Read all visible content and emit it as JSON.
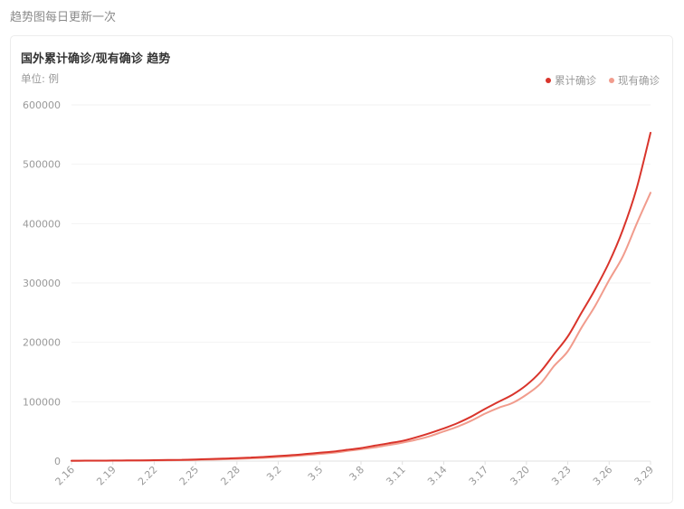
{
  "header": {
    "text": "趋势图每日更新一次"
  },
  "card": {
    "title": "国外累计确诊/现有确诊 趋势",
    "unit_label": "单位: 例"
  },
  "colors": {
    "cumulative": "#d9342b",
    "current": "#f19c8d",
    "grid": "#f2f2f2"
  },
  "chart_data": {
    "type": "line",
    "title": "国外累计确诊/现有确诊 趋势",
    "ylabel": "单位: 例",
    "ylim": [
      0,
      600000
    ],
    "y_ticks": [
      "0",
      "100000",
      "200000",
      "300000",
      "400000",
      "500000",
      "600000"
    ],
    "x_tick_labels": [
      "2.16",
      "2.19",
      "2.22",
      "2.25",
      "2.28",
      "3.2",
      "3.5",
      "3.8",
      "3.11",
      "3.14",
      "3.17",
      "3.20",
      "3.23",
      "3.26",
      "3.29"
    ],
    "legend_position": "top-right",
    "x": [
      "2.16",
      "2.17",
      "2.18",
      "2.19",
      "2.20",
      "2.21",
      "2.22",
      "2.23",
      "2.24",
      "2.25",
      "2.26",
      "2.27",
      "2.28",
      "2.29",
      "3.1",
      "3.2",
      "3.3",
      "3.4",
      "3.5",
      "3.6",
      "3.7",
      "3.8",
      "3.9",
      "3.10",
      "3.11",
      "3.12",
      "3.13",
      "3.14",
      "3.15",
      "3.16",
      "3.17",
      "3.18",
      "3.19",
      "3.20",
      "3.21",
      "3.22",
      "3.23",
      "3.24",
      "3.25",
      "3.26",
      "3.27",
      "3.28",
      "3.29"
    ],
    "series": [
      {
        "name": "累计确诊",
        "values": [
          600,
          700,
          800,
          900,
          1000,
          1200,
          1500,
          1800,
          2200,
          2800,
          3400,
          4200,
          5000,
          6000,
          7000,
          8500,
          10000,
          12000,
          14000,
          16000,
          19000,
          22000,
          26000,
          30000,
          34000,
          40000,
          47000,
          55000,
          64000,
          75000,
          88000,
          100000,
          112000,
          128000,
          150000,
          180000,
          210000,
          250000,
          290000,
          335000,
          390000,
          460000,
          553000
        ]
      },
      {
        "name": "现有确诊",
        "values": [
          500,
          550,
          600,
          700,
          800,
          900,
          1100,
          1300,
          1600,
          2000,
          2500,
          3000,
          3700,
          4500,
          5500,
          6800,
          8200,
          10000,
          12000,
          14000,
          17000,
          20000,
          23000,
          27000,
          31000,
          36000,
          42000,
          50000,
          58000,
          68000,
          80000,
          90000,
          98000,
          112000,
          130000,
          160000,
          185000,
          225000,
          262000,
          305000,
          345000,
          400000,
          452000
        ]
      }
    ]
  }
}
